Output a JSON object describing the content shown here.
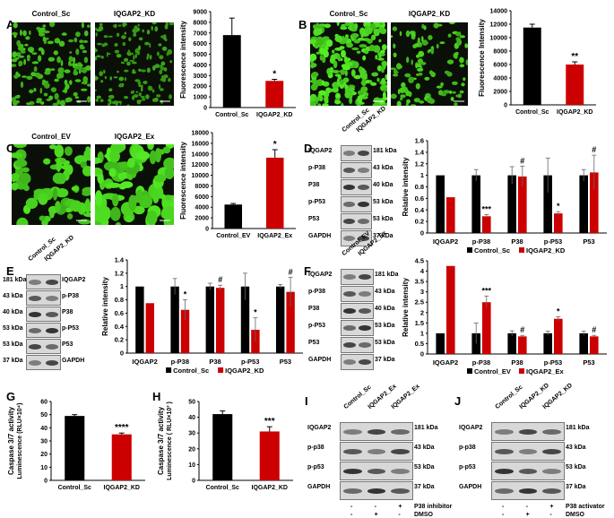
{
  "panels": {
    "A": {
      "letter": "A",
      "label1": "Control_Sc",
      "label2": "IQGAP2_KD",
      "chart_data": {
        "type": "bar",
        "categories": [
          "Control_Sc",
          "IQGAP2_KD"
        ],
        "values": [
          6800,
          2500
        ],
        "errors": [
          1600,
          150
        ],
        "ylabel": "Fluorescence intensity",
        "ylim": [
          0,
          9000
        ],
        "yticks": [
          0,
          1000,
          2000,
          3000,
          4000,
          5000,
          6000,
          7000,
          8000,
          9000
        ],
        "colors": [
          "#000000",
          "#cc0000"
        ],
        "sig": [
          "",
          "*"
        ]
      }
    },
    "B": {
      "letter": "B",
      "label1": "Control_Sc",
      "label2": "IQGAP2_KD",
      "chart_data": {
        "type": "bar",
        "categories": [
          "Control_Sc",
          "IQGAP2_KD"
        ],
        "values": [
          11500,
          6000
        ],
        "errors": [
          500,
          400
        ],
        "ylabel": "Fluorescence Intensity",
        "ylim": [
          0,
          14000
        ],
        "yticks": [
          0,
          2000,
          4000,
          6000,
          8000,
          10000,
          12000,
          14000
        ],
        "colors": [
          "#000000",
          "#cc0000"
        ],
        "sig": [
          "",
          "**"
        ]
      }
    },
    "C": {
      "letter": "C",
      "label1": "Control_EV",
      "label2": "IQGAP2_Ex",
      "chart_data": {
        "type": "bar",
        "categories": [
          "Control_EV",
          "IQGAP2_Ex"
        ],
        "values": [
          4500,
          13300
        ],
        "errors": [
          200,
          1500
        ],
        "ylabel": "Fluorescence intensity",
        "ylim": [
          0,
          18000
        ],
        "yticks": [
          0,
          2000,
          4000,
          6000,
          8000,
          10000,
          12000,
          14000,
          16000,
          18000
        ],
        "colors": [
          "#000000",
          "#cc0000"
        ],
        "sig": [
          "",
          "*"
        ]
      }
    },
    "D": {
      "letter": "D",
      "lanes": [
        "Control_Sc",
        "IQGAP2_KD"
      ],
      "rows": [
        "IQGAP2",
        "p-P38",
        "P38",
        "p-P53",
        "P53",
        "GAPDH"
      ],
      "kda": [
        "181 kDa",
        "43 kDa",
        "40 kDa",
        "53 kDa",
        "53 kDa",
        "37 kDa"
      ],
      "chart_data": {
        "type": "bar",
        "categories": [
          "IQGAP2",
          "p-P38",
          "P38",
          "p-P53",
          "P53"
        ],
        "series": [
          {
            "name": "Control_Sc",
            "values": [
              1,
              1,
              1,
              1,
              1
            ],
            "errors": [
              0,
              0.1,
              0.15,
              0.3,
              0.1
            ]
          },
          {
            "name": "IQGAP2_KD",
            "values": [
              0.62,
              0.29,
              0.98,
              0.34,
              1.05
            ],
            "errors": [
              0,
              0.03,
              0.18,
              0.03,
              0.3
            ]
          }
        ],
        "ylabel": "Relative intensity",
        "ylim": [
          0,
          1.6
        ],
        "yticks": [
          0,
          0.2,
          0.4,
          0.6,
          0.8,
          1,
          1.2,
          1.4,
          1.6
        ],
        "colors": [
          "#000000",
          "#cc0000"
        ],
        "sig": [
          "",
          "***",
          "#",
          "*",
          "#"
        ]
      }
    },
    "E": {
      "letter": "E",
      "lanes": [
        "Control_Sc",
        "IQGAP2_KD"
      ],
      "rows": [
        "IQGAP2",
        "p-P38",
        "P38",
        "p-P53",
        "P53",
        "GAPDH"
      ],
      "kda": [
        "181 kDa",
        "43 kDa",
        "40 kDa",
        "53 kDa",
        "53 kDa",
        "37 kDa"
      ],
      "chart_data": {
        "type": "bar",
        "categories": [
          "IQGAP2",
          "p-P38",
          "P38",
          "p-P53",
          "P53"
        ],
        "series": [
          {
            "name": "Control_Sc",
            "values": [
              1,
              1,
              1,
              1,
              1
            ],
            "errors": [
              0,
              0.12,
              0.05,
              0.2,
              0.03
            ]
          },
          {
            "name": "IQGAP2_KD",
            "values": [
              0.75,
              0.65,
              0.98,
              0.35,
              0.92
            ],
            "errors": [
              0,
              0.15,
              0.04,
              0.18,
              0.22
            ]
          }
        ],
        "ylabel": "Relative intensity",
        "ylim": [
          0,
          1.4
        ],
        "yticks": [
          0,
          0.2,
          0.4,
          0.6,
          0.8,
          1,
          1.2,
          1.4
        ],
        "colors": [
          "#000000",
          "#cc0000"
        ],
        "sig": [
          "",
          "*",
          "#",
          "*",
          "#"
        ]
      }
    },
    "F": {
      "letter": "F",
      "lanes": [
        "Control_EV",
        "IQGAP2_Ex"
      ],
      "rows": [
        "IQGAP2",
        "p-P38",
        "P38",
        "p-P53",
        "P53",
        "GAPDH"
      ],
      "kda": [
        "181 kDa",
        "43 kDa",
        "40 kDa",
        "53 kDa",
        "53 kDa",
        "37 kDa"
      ],
      "chart_data": {
        "type": "bar",
        "categories": [
          "IQGAP2",
          "p-P38",
          "P38",
          "p-P53",
          "P53"
        ],
        "series": [
          {
            "name": "Control_EV",
            "values": [
              1,
              1,
              1,
              1,
              1
            ],
            "errors": [
              0,
              0.5,
              0.12,
              0.1,
              0.1
            ]
          },
          {
            "name": "IQGAP2_Ex",
            "values": [
              4.25,
              2.5,
              0.85,
              1.7,
              0.85
            ],
            "errors": [
              0,
              0.3,
              0.05,
              0.1,
              0.05
            ]
          }
        ],
        "ylabel": "Relative intensity",
        "ylim": [
          0,
          4.5
        ],
        "yticks": [
          0,
          0.5,
          1,
          1.5,
          2,
          2.5,
          3,
          3.5,
          4,
          4.5
        ],
        "colors": [
          "#000000",
          "#cc0000"
        ],
        "sig": [
          "",
          "***",
          "#",
          "*",
          "#"
        ]
      }
    },
    "G": {
      "letter": "G",
      "chart_data": {
        "type": "bar",
        "categories": [
          "Control_Sc",
          "IQGAP2_KD"
        ],
        "values": [
          49,
          35
        ],
        "errors": [
          1,
          1
        ],
        "ylabel": "Caspase 3/7 activity",
        "ylabel2": "Luminescence (RLU×10⁴)",
        "ylim": [
          0,
          60
        ],
        "yticks": [
          0,
          10,
          20,
          30,
          40,
          50,
          60
        ],
        "colors": [
          "#000000",
          "#cc0000"
        ],
        "sig": [
          "",
          "****"
        ]
      }
    },
    "H": {
      "letter": "H",
      "chart_data": {
        "type": "bar",
        "categories": [
          "Control_Sc",
          "IQGAP2_KD"
        ],
        "values": [
          42,
          31
        ],
        "errors": [
          2,
          3
        ],
        "ylabel": "Caspase 3/7 activity",
        "ylabel2": "Luminescence ( RLU×10³ )",
        "ylim": [
          0,
          50
        ],
        "yticks": [
          0,
          10,
          20,
          30,
          40,
          50
        ],
        "colors": [
          "#000000",
          "#cc0000"
        ],
        "sig": [
          "",
          "***"
        ]
      }
    },
    "I": {
      "letter": "I",
      "lanes": [
        "Control_Sc",
        "IQGAP2_Ex",
        "IQGAP2_Ex"
      ],
      "rows": [
        "IQGAP2",
        "p-p38",
        "p-p53",
        "GAPDH"
      ],
      "kda": [
        "181 kDa",
        "43 kDa",
        "53 kDa",
        "37 kDa"
      ],
      "treat1": "P38 inhibitor",
      "treat2": "DMSO",
      "signs1": [
        "-",
        "-",
        "+"
      ],
      "signs2": [
        "-",
        "+",
        "-"
      ]
    },
    "J": {
      "letter": "J",
      "lanes": [
        "Control_Sc",
        "IQGAP2_KD",
        "IQGAP2_KD"
      ],
      "rows": [
        "IQGAP2",
        "p-p38",
        "p-p53",
        "GAPDH"
      ],
      "kda": [
        "181 kDa",
        "43 kDa",
        "53 kDa",
        "37 kDa"
      ],
      "treat1": "P38 activator",
      "treat2": "DMSO",
      "signs1": [
        "-",
        "-",
        "+"
      ],
      "signs2": [
        "-",
        "+",
        "-"
      ]
    }
  }
}
